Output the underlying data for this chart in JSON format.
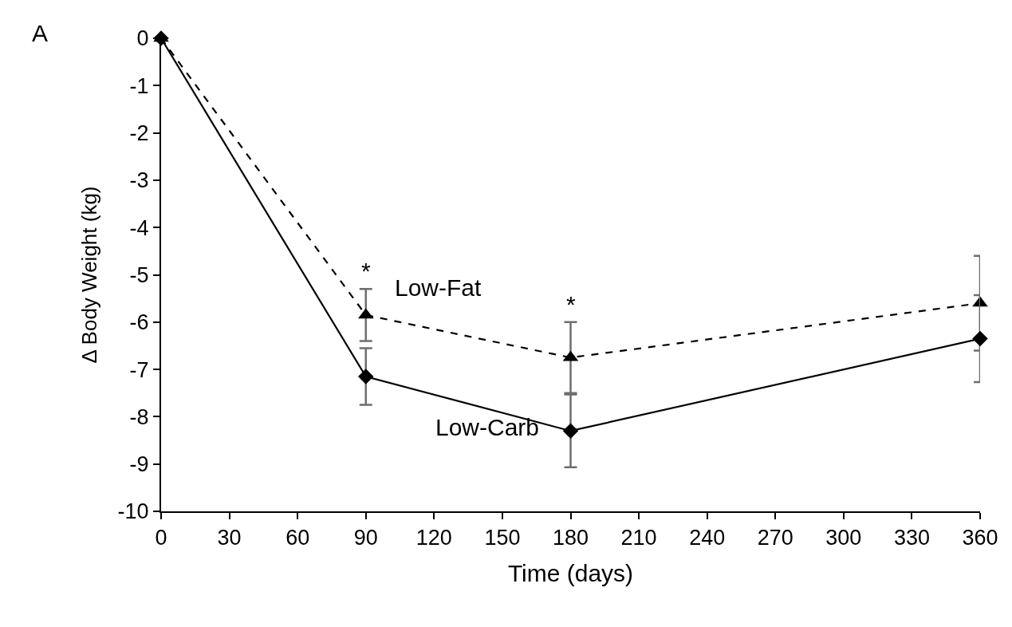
{
  "chart_data": {
    "type": "line",
    "xlabel": "Time (days)",
    "ylabel": "Δ Body Weight (kg)",
    "x": [
      0,
      90,
      180,
      360
    ],
    "series": [
      {
        "name": "Low-Fat",
        "color": "#000000",
        "marker": "triangle",
        "line_style": "dashed",
        "values": [
          0,
          -5.85,
          -6.75,
          -5.6
        ],
        "errors": [
          null,
          0.55,
          0.75,
          1.0
        ]
      },
      {
        "name": "Low-Carb",
        "color": "#000000",
        "marker": "diamond",
        "line_style": "solid",
        "values": [
          0,
          -7.15,
          -8.3,
          -6.35
        ],
        "errors": [
          null,
          0.6,
          0.77,
          0.92
        ]
      }
    ],
    "annotations": [
      "A",
      "*",
      "*"
    ],
    "xlim": [
      0,
      360
    ],
    "xticks": [
      0,
      30,
      60,
      90,
      120,
      150,
      180,
      210,
      240,
      270,
      300,
      330,
      360
    ],
    "ylim": [
      -10,
      0
    ],
    "yticks": [
      0,
      -1,
      -2,
      -3,
      -4,
      -5,
      -6,
      -7,
      -8,
      -9,
      -10
    ],
    "grid": false,
    "legend": false
  }
}
